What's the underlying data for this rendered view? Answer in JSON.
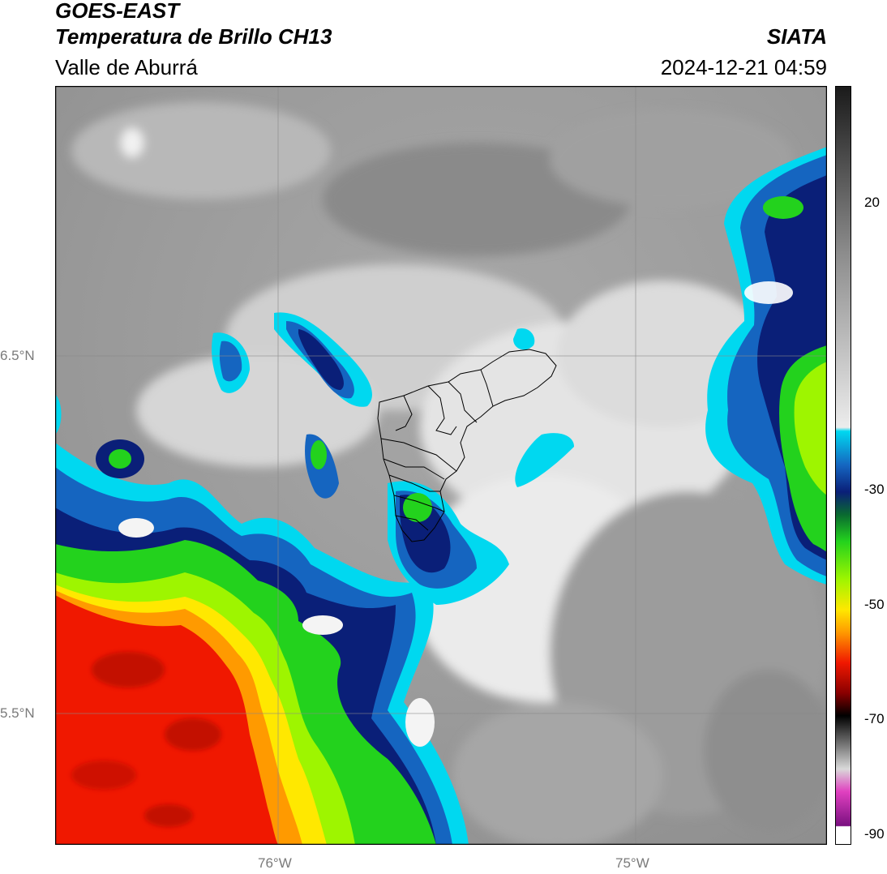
{
  "header": {
    "satellite": "GOES-EAST",
    "product": "Temperatura de Brillo CH13",
    "region": "Valle de Aburrá",
    "agency": "SIATA",
    "datetime": "2024-12-21 04:59"
  },
  "axes": {
    "lat_ticks": [
      "6.5°N",
      "5.5°N"
    ],
    "lon_ticks": [
      "76°W",
      "75°W"
    ]
  },
  "colorbar": {
    "ticks": [
      "20",
      "-30",
      "-50",
      "-70",
      "-90"
    ],
    "colors": {
      "warm_dark": "#1a1a1a",
      "warm_mid": "#8c8c8c",
      "warm_light": "#ececec",
      "cyan": "#00d8f0",
      "blue": "#1565c0",
      "navy": "#0a1f78",
      "green": "#23d21d",
      "lime": "#9ef500",
      "yellow": "#ffe800",
      "orange": "#ff9a00",
      "red": "#f01800",
      "darkred": "#8a0000",
      "black": "#000000",
      "magenta": "#e040c0",
      "purple": "#7a1080",
      "white": "#ffffff"
    }
  }
}
